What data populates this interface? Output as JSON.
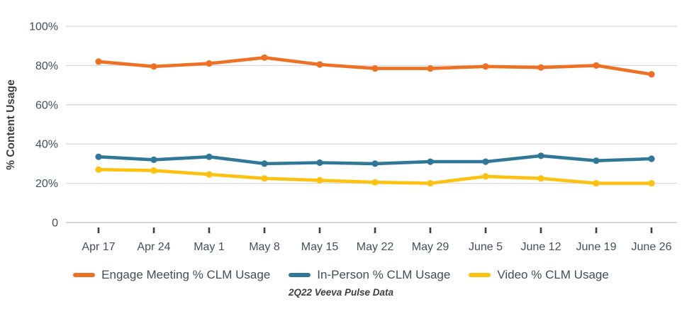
{
  "caption": "2Q22 Veeva Pulse Data",
  "colors": {
    "engage": "#ee7023",
    "in_person": "#2f7897",
    "video": "#fdc110",
    "gridline": "#d9d9d9",
    "axis_line": "#bfbfbf",
    "tick_mark": "#404040",
    "tick_label": "#44505e",
    "axis_title": "#3d3d3d"
  },
  "chart_data": {
    "type": "line",
    "title": "",
    "xlabel": "",
    "ylabel": "% Content Usage",
    "ylim": [
      0,
      100
    ],
    "grid": "horizontal",
    "legend_position": "bottom",
    "categories": [
      "Apr 17",
      "Apr 24",
      "May 1",
      "May 8",
      "May 15",
      "May 22",
      "May 29",
      "June 5",
      "June 12",
      "June 19",
      "June 26"
    ],
    "yticks": [
      {
        "value": 100,
        "label": "100%"
      },
      {
        "value": 80,
        "label": "80%"
      },
      {
        "value": 60,
        "label": "60%"
      },
      {
        "value": 40,
        "label": "40%"
      },
      {
        "value": 20,
        "label": "20%"
      },
      {
        "value": 0,
        "label": "0"
      }
    ],
    "series": [
      {
        "name": "Engage Meeting % CLM Usage",
        "color": "#ee7023",
        "values": [
          82,
          79.5,
          81,
          84,
          80.5,
          78.5,
          78.5,
          79.5,
          79,
          80,
          75.5
        ]
      },
      {
        "name": "In-Person % CLM Usage",
        "color": "#2f7897",
        "values": [
          33.5,
          32,
          33.5,
          30,
          30.5,
          30,
          31,
          31,
          34,
          31.5,
          32.5
        ]
      },
      {
        "name": "Video % CLM Usage",
        "color": "#fdc110",
        "values": [
          27,
          26.5,
          24.5,
          22.5,
          21.5,
          20.5,
          20,
          23.5,
          22.5,
          20,
          20
        ]
      }
    ]
  }
}
